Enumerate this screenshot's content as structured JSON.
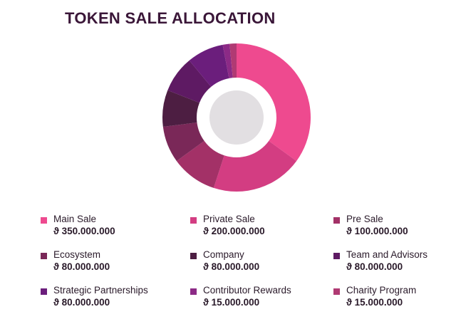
{
  "title": "TOKEN SALE ALLOCATION",
  "currency_symbol": "ϑ",
  "chart_data": {
    "type": "pie",
    "style": "donut",
    "title": "TOKEN SALE ALLOCATION",
    "legend": "bottom",
    "slices": [
      {
        "label": "Main Sale",
        "value": 350000000,
        "value_text": "ϑ 350.000.000",
        "color": "#ee4a8f"
      },
      {
        "label": "Private Sale",
        "value": 200000000,
        "value_text": "ϑ 200.000.000",
        "color": "#d33d82"
      },
      {
        "label": "Pre Sale",
        "value": 100000000,
        "value_text": "ϑ 100.000.000",
        "color": "#a33167"
      },
      {
        "label": "Ecosystem",
        "value": 80000000,
        "value_text": "ϑ 80.000.000",
        "color": "#7a2858"
      },
      {
        "label": "Company",
        "value": 80000000,
        "value_text": "ϑ 80.000.000",
        "color": "#4d1e42"
      },
      {
        "label": "Team and Advisors",
        "value": 80000000,
        "value_text": "ϑ 80.000.000",
        "color": "#5e1a63"
      },
      {
        "label": "Strategic Partnerships",
        "value": 80000000,
        "value_text": "ϑ 80.000.000",
        "color": "#6b1e7c"
      },
      {
        "label": "Contributor Rewards",
        "value": 15000000,
        "value_text": "ϑ 15.000.000",
        "color": "#8c2a86"
      },
      {
        "label": "Charity Program",
        "value": 15000000,
        "value_text": "ϑ 15.000.000",
        "color": "#b03a73"
      }
    ]
  }
}
